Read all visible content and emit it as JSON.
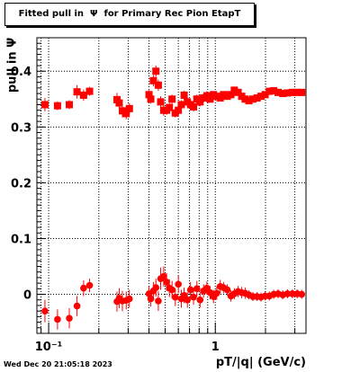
{
  "title": "Fitted pull in  Ψ  for Primary Rec Pion EtapT",
  "ylabel": "pull in  Ψ",
  "xlabel": "pT/|q| (GeV/c)",
  "timestamp": "Wed Dec 20 21:05:18 2023",
  "chart_data": {
    "type": "scatter",
    "xscale": "log",
    "xlim": [
      0.085,
      3.5
    ],
    "ylim": [
      -0.07,
      0.46
    ],
    "grid": true,
    "marker_color": "#ff0000",
    "xtick_labels": [
      {
        "value": 0.1,
        "label": "10⁻¹"
      },
      {
        "value": 1,
        "label": "1"
      }
    ],
    "ytick_labels": [
      {
        "value": 0,
        "label": "0"
      },
      {
        "value": 0.1,
        "label": "0.1"
      },
      {
        "value": 0.2,
        "label": "0.2"
      },
      {
        "value": 0.3,
        "label": "0.3"
      },
      {
        "value": 0.4,
        "label": "0.4"
      }
    ],
    "series": [
      {
        "marker": "square",
        "points": [
          {
            "x": 0.095,
            "y": 0.34,
            "err": 0.012
          },
          {
            "x": 0.113,
            "y": 0.338,
            "err": 0.008
          },
          {
            "x": 0.133,
            "y": 0.34,
            "err": 0.008
          },
          {
            "x": 0.148,
            "y": 0.363,
            "err": 0.012
          },
          {
            "x": 0.162,
            "y": 0.357,
            "err": 0.01
          },
          {
            "x": 0.176,
            "y": 0.364,
            "err": 0.008
          },
          {
            "x": 0.257,
            "y": 0.349,
            "err": 0.012
          },
          {
            "x": 0.265,
            "y": 0.343,
            "err": 0.012
          },
          {
            "x": 0.277,
            "y": 0.329,
            "err": 0.012
          },
          {
            "x": 0.292,
            "y": 0.324,
            "err": 0.01
          },
          {
            "x": 0.305,
            "y": 0.333,
            "err": 0.01
          },
          {
            "x": 0.4,
            "y": 0.358,
            "err": 0.008
          },
          {
            "x": 0.41,
            "y": 0.35,
            "err": 0.008
          },
          {
            "x": 0.425,
            "y": 0.383,
            "err": 0.01
          },
          {
            "x": 0.44,
            "y": 0.4,
            "err": 0.01
          },
          {
            "x": 0.455,
            "y": 0.375,
            "err": 0.01
          },
          {
            "x": 0.47,
            "y": 0.345,
            "err": 0.01
          },
          {
            "x": 0.49,
            "y": 0.33,
            "err": 0.01
          },
          {
            "x": 0.51,
            "y": 0.33,
            "err": 0.008
          },
          {
            "x": 0.53,
            "y": 0.335,
            "err": 0.008
          },
          {
            "x": 0.55,
            "y": 0.35,
            "err": 0.008
          },
          {
            "x": 0.575,
            "y": 0.325,
            "err": 0.008
          },
          {
            "x": 0.6,
            "y": 0.33,
            "err": 0.008
          },
          {
            "x": 0.625,
            "y": 0.34,
            "err": 0.008
          },
          {
            "x": 0.65,
            "y": 0.357,
            "err": 0.008
          },
          {
            "x": 0.68,
            "y": 0.345,
            "err": 0.008
          },
          {
            "x": 0.71,
            "y": 0.34,
            "err": 0.008
          },
          {
            "x": 0.74,
            "y": 0.336,
            "err": 0.008
          },
          {
            "x": 0.775,
            "y": 0.35,
            "err": 0.008
          },
          {
            "x": 0.81,
            "y": 0.345,
            "err": 0.008
          },
          {
            "x": 0.85,
            "y": 0.352,
            "err": 0.008
          },
          {
            "x": 0.89,
            "y": 0.356,
            "err": 0.008
          },
          {
            "x": 0.93,
            "y": 0.35,
            "err": 0.006
          },
          {
            "x": 0.975,
            "y": 0.358,
            "err": 0.006
          },
          {
            "x": 1.02,
            "y": 0.355,
            "err": 0.006
          },
          {
            "x": 1.07,
            "y": 0.352,
            "err": 0.006
          },
          {
            "x": 1.12,
            "y": 0.358,
            "err": 0.006
          },
          {
            "x": 1.18,
            "y": 0.355,
            "err": 0.006
          },
          {
            "x": 1.24,
            "y": 0.358,
            "err": 0.006
          },
          {
            "x": 1.3,
            "y": 0.366,
            "err": 0.006
          },
          {
            "x": 1.37,
            "y": 0.362,
            "err": 0.006
          },
          {
            "x": 1.44,
            "y": 0.355,
            "err": 0.006
          },
          {
            "x": 1.51,
            "y": 0.35,
            "err": 0.006
          },
          {
            "x": 1.59,
            "y": 0.347,
            "err": 0.006
          },
          {
            "x": 1.68,
            "y": 0.35,
            "err": 0.006
          },
          {
            "x": 1.78,
            "y": 0.352,
            "err": 0.006
          },
          {
            "x": 1.88,
            "y": 0.355,
            "err": 0.006
          },
          {
            "x": 1.99,
            "y": 0.358,
            "err": 0.006
          },
          {
            "x": 2.11,
            "y": 0.364,
            "err": 0.006
          },
          {
            "x": 2.24,
            "y": 0.365,
            "err": 0.006
          },
          {
            "x": 2.38,
            "y": 0.362,
            "err": 0.006
          },
          {
            "x": 2.54,
            "y": 0.36,
            "err": 0.006
          },
          {
            "x": 2.71,
            "y": 0.361,
            "err": 0.006
          },
          {
            "x": 2.9,
            "y": 0.362,
            "err": 0.006
          },
          {
            "x": 3.1,
            "y": 0.362,
            "err": 0.006
          },
          {
            "x": 3.3,
            "y": 0.362,
            "err": 0.006
          }
        ]
      },
      {
        "marker": "circle",
        "points": [
          {
            "x": 0.095,
            "y": -0.03,
            "err": 0.02
          },
          {
            "x": 0.113,
            "y": -0.045,
            "err": 0.018
          },
          {
            "x": 0.133,
            "y": -0.043,
            "err": 0.018
          },
          {
            "x": 0.148,
            "y": -0.021,
            "err": 0.018
          },
          {
            "x": 0.162,
            "y": 0.011,
            "err": 0.014
          },
          {
            "x": 0.176,
            "y": 0.016,
            "err": 0.012
          },
          {
            "x": 0.257,
            "y": -0.013,
            "err": 0.018
          },
          {
            "x": 0.265,
            "y": -0.007,
            "err": 0.018
          },
          {
            "x": 0.277,
            "y": -0.012,
            "err": 0.018
          },
          {
            "x": 0.292,
            "y": -0.011,
            "err": 0.016
          },
          {
            "x": 0.305,
            "y": -0.008,
            "err": 0.016
          },
          {
            "x": 0.4,
            "y": 0.001,
            "err": 0.014
          },
          {
            "x": 0.41,
            "y": -0.008,
            "err": 0.014
          },
          {
            "x": 0.425,
            "y": 0.006,
            "err": 0.016
          },
          {
            "x": 0.44,
            "y": 0.012,
            "err": 0.016
          },
          {
            "x": 0.455,
            "y": -0.012,
            "err": 0.018
          },
          {
            "x": 0.47,
            "y": 0.028,
            "err": 0.02
          },
          {
            "x": 0.49,
            "y": 0.032,
            "err": 0.018
          },
          {
            "x": 0.51,
            "y": 0.022,
            "err": 0.016
          },
          {
            "x": 0.53,
            "y": 0.011,
            "err": 0.016
          },
          {
            "x": 0.55,
            "y": 0.008,
            "err": 0.016
          },
          {
            "x": 0.575,
            "y": -0.005,
            "err": 0.016
          },
          {
            "x": 0.6,
            "y": 0.018,
            "err": 0.016
          },
          {
            "x": 0.625,
            "y": -0.008,
            "err": 0.016
          },
          {
            "x": 0.65,
            "y": -0.002,
            "err": 0.014
          },
          {
            "x": 0.68,
            "y": -0.01,
            "err": 0.014
          },
          {
            "x": 0.71,
            "y": 0.008,
            "err": 0.014
          },
          {
            "x": 0.74,
            "y": -0.005,
            "err": 0.014
          },
          {
            "x": 0.775,
            "y": 0.01,
            "err": 0.014
          },
          {
            "x": 0.81,
            "y": -0.01,
            "err": 0.014
          },
          {
            "x": 0.85,
            "y": 0.006,
            "err": 0.012
          },
          {
            "x": 0.89,
            "y": 0.011,
            "err": 0.012
          },
          {
            "x": 0.93,
            "y": 0.003,
            "err": 0.012
          },
          {
            "x": 0.975,
            "y": -0.004,
            "err": 0.012
          },
          {
            "x": 1.02,
            "y": 0.002,
            "err": 0.012
          },
          {
            "x": 1.07,
            "y": 0.014,
            "err": 0.012
          },
          {
            "x": 1.12,
            "y": 0.012,
            "err": 0.01
          },
          {
            "x": 1.18,
            "y": 0.008,
            "err": 0.01
          },
          {
            "x": 1.24,
            "y": -0.003,
            "err": 0.01
          },
          {
            "x": 1.3,
            "y": 0.001,
            "err": 0.01
          },
          {
            "x": 1.37,
            "y": 0.005,
            "err": 0.01
          },
          {
            "x": 1.44,
            "y": 0.003,
            "err": 0.01
          },
          {
            "x": 1.51,
            "y": 0.002,
            "err": 0.01
          },
          {
            "x": 1.59,
            "y": -0.001,
            "err": 0.008
          },
          {
            "x": 1.68,
            "y": -0.004,
            "err": 0.008
          },
          {
            "x": 1.78,
            "y": -0.004,
            "err": 0.008
          },
          {
            "x": 1.88,
            "y": -0.005,
            "err": 0.008
          },
          {
            "x": 1.99,
            "y": -0.003,
            "err": 0.008
          },
          {
            "x": 2.11,
            "y": -0.003,
            "err": 0.008
          },
          {
            "x": 2.24,
            "y": 0.0,
            "err": 0.008
          },
          {
            "x": 2.38,
            "y": 0.001,
            "err": 0.008
          },
          {
            "x": 2.54,
            "y": -0.001,
            "err": 0.008
          },
          {
            "x": 2.71,
            "y": 0.001,
            "err": 0.008
          },
          {
            "x": 2.9,
            "y": 0.001,
            "err": 0.008
          },
          {
            "x": 3.1,
            "y": 0.001,
            "err": 0.008
          },
          {
            "x": 3.3,
            "y": 0.0,
            "err": 0.008
          }
        ]
      }
    ]
  }
}
